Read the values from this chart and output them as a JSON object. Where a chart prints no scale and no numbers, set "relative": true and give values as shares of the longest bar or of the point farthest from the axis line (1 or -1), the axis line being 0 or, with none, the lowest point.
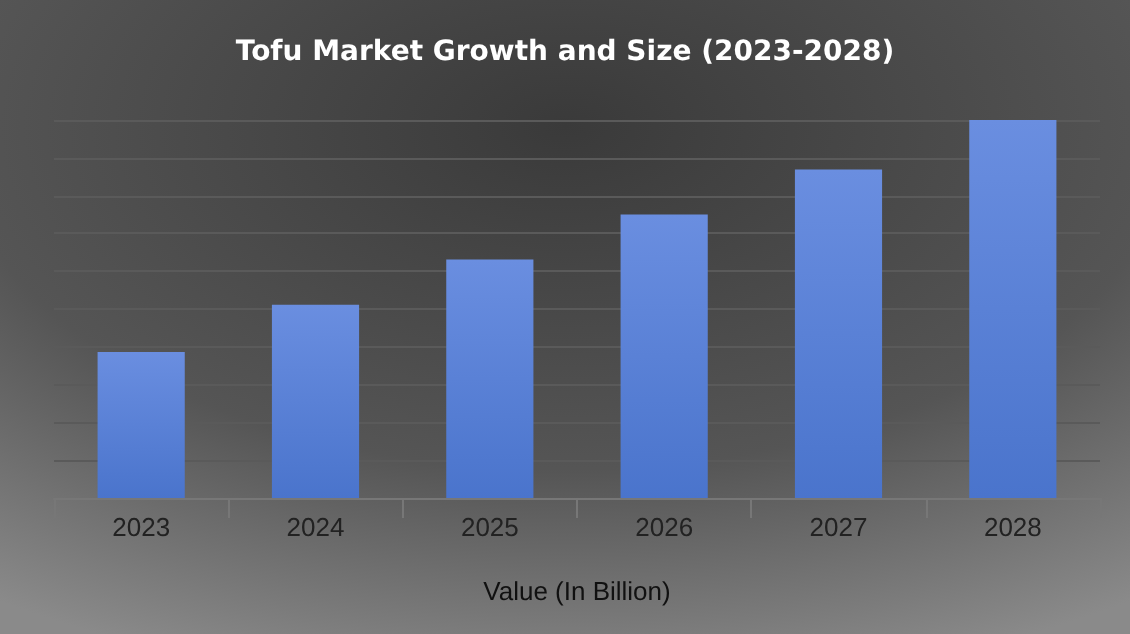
{
  "chart_data": {
    "type": "bar",
    "title": "Tofu Market Growth and Size (2023-2028)",
    "xlabel": "Value (In Billion)",
    "categories": [
      "2023",
      "2024",
      "2025",
      "2026",
      "2027",
      "2028"
    ],
    "values": [
      0.386,
      0.511,
      0.631,
      0.75,
      0.869,
      1
    ],
    "color": "#4a74cc",
    "relative": true,
    "grid": "y"
  }
}
